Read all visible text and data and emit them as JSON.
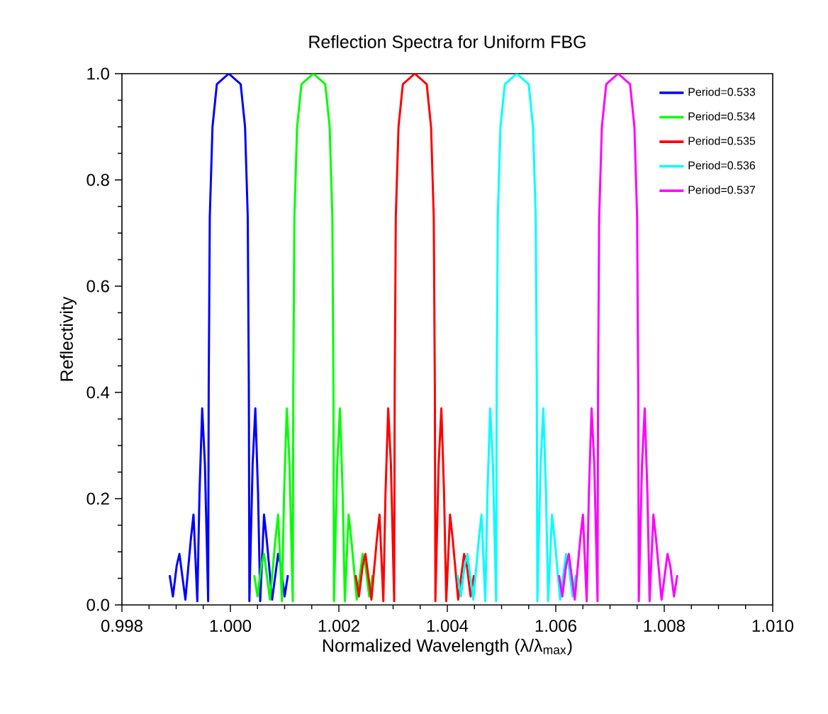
{
  "chart_data": {
    "type": "line",
    "title": "Reflection Spectra for Uniform FBG",
    "xlabel": "Normalized Wavelength (λ/λ$_{max}$)",
    "ylabel": "Reflectivity",
    "xlim": [
      0.998,
      1.01
    ],
    "ylim": [
      0,
      1
    ],
    "xticks": [
      {
        "value": 0.998,
        "label": "0.998"
      },
      {
        "value": 1.0,
        "label": "1.000"
      },
      {
        "value": 1.002,
        "label": "1.002"
      },
      {
        "value": 1.004,
        "label": "1.004"
      },
      {
        "value": 1.006,
        "label": "1.006"
      },
      {
        "value": 1.008,
        "label": "1.008"
      },
      {
        "value": 1.01,
        "label": "1.010"
      }
    ],
    "yticks": [
      {
        "value": 0,
        "label": "0.0"
      },
      {
        "value": 0.2,
        "label": "0.2"
      },
      {
        "value": 0.4,
        "label": "0.4"
      },
      {
        "value": 0.6,
        "label": "0.6"
      },
      {
        "value": 0.8,
        "label": "0.8"
      },
      {
        "value": 1.0,
        "label": "1.0"
      }
    ],
    "legend": "top right",
    "grid": false,
    "series": [
      {
        "name": "Period=0.533",
        "color": "#0000ff",
        "x": [
          0.99888,
          0.99894,
          0.99901,
          0.99906,
          0.99917,
          0.99927,
          0.99932,
          0.99939,
          0.99943,
          0.99948,
          0.99953,
          0.99959,
          0.9996,
          0.99962,
          0.99967,
          0.99975,
          0.99997,
          1.00019,
          1.00027,
          1.00032,
          1.00034,
          1.00035,
          1.00041,
          1.00046,
          1.00051,
          1.00055,
          1.00062,
          1.00067,
          1.00077,
          1.00088,
          1.00093,
          1.001,
          1.00106
        ],
        "values": [
          0.056,
          0.016,
          0.074,
          0.096,
          0.01,
          0.123,
          0.17,
          0.007,
          0.21,
          0.37,
          0.265,
          0.007,
          0.41,
          0.73,
          0.9,
          0.98,
          1.0,
          0.98,
          0.9,
          0.73,
          0.41,
          0.007,
          0.265,
          0.37,
          0.21,
          0.007,
          0.17,
          0.123,
          0.01,
          0.096,
          0.074,
          0.016,
          0.056
        ]
      },
      {
        "name": "Period=0.534",
        "color": "#00ff00",
        "x": [
          1.00044,
          1.0005,
          1.00057,
          1.00062,
          1.00073,
          1.00083,
          1.00088,
          1.00095,
          1.00099,
          1.00104,
          1.00109,
          1.00115,
          1.00116,
          1.00118,
          1.00123,
          1.00131,
          1.00153,
          1.00175,
          1.00183,
          1.00188,
          1.0019,
          1.00191,
          1.00197,
          1.00202,
          1.00207,
          1.00211,
          1.00218,
          1.00223,
          1.00233,
          1.00244,
          1.00249,
          1.00256,
          1.00262
        ],
        "values": [
          0.056,
          0.016,
          0.074,
          0.096,
          0.01,
          0.123,
          0.17,
          0.007,
          0.21,
          0.37,
          0.265,
          0.007,
          0.41,
          0.73,
          0.9,
          0.98,
          1.0,
          0.98,
          0.9,
          0.73,
          0.41,
          0.007,
          0.265,
          0.37,
          0.21,
          0.007,
          0.17,
          0.123,
          0.01,
          0.096,
          0.074,
          0.016,
          0.056
        ]
      },
      {
        "name": "Period=0.535",
        "color": "#ff0000",
        "x": [
          1.00231,
          1.00237,
          1.00244,
          1.00249,
          1.0026,
          1.0027,
          1.00275,
          1.00282,
          1.00286,
          1.00291,
          1.00296,
          1.00302,
          1.00303,
          1.00305,
          1.0031,
          1.00318,
          1.0034,
          1.00362,
          1.0037,
          1.00375,
          1.00377,
          1.00378,
          1.00384,
          1.00389,
          1.00394,
          1.00398,
          1.00405,
          1.0041,
          1.0042,
          1.00431,
          1.00436,
          1.00443,
          1.00449
        ],
        "values": [
          0.056,
          0.016,
          0.074,
          0.096,
          0.01,
          0.123,
          0.17,
          0.007,
          0.21,
          0.37,
          0.265,
          0.007,
          0.41,
          0.73,
          0.9,
          0.98,
          1.0,
          0.98,
          0.9,
          0.73,
          0.41,
          0.007,
          0.265,
          0.37,
          0.21,
          0.007,
          0.17,
          0.123,
          0.01,
          0.096,
          0.074,
          0.016,
          0.056
        ]
      },
      {
        "name": "Period=0.536",
        "color": "#00ffff",
        "x": [
          1.00419,
          1.00425,
          1.00432,
          1.00437,
          1.00448,
          1.00458,
          1.00463,
          1.0047,
          1.00474,
          1.00479,
          1.00484,
          1.0049,
          1.00491,
          1.00493,
          1.00498,
          1.00506,
          1.00528,
          1.0055,
          1.00558,
          1.00563,
          1.00565,
          1.00566,
          1.00572,
          1.00577,
          1.00582,
          1.00586,
          1.00593,
          1.00598,
          1.00608,
          1.00619,
          1.00624,
          1.00631,
          1.00637
        ],
        "values": [
          0.056,
          0.016,
          0.074,
          0.096,
          0.01,
          0.123,
          0.17,
          0.007,
          0.21,
          0.37,
          0.265,
          0.007,
          0.41,
          0.73,
          0.9,
          0.98,
          1.0,
          0.98,
          0.9,
          0.73,
          0.41,
          0.007,
          0.265,
          0.37,
          0.21,
          0.007,
          0.17,
          0.123,
          0.01,
          0.096,
          0.074,
          0.016,
          0.056
        ]
      },
      {
        "name": "Period=0.537",
        "color": "#ff00ff",
        "x": [
          1.00606,
          1.00612,
          1.00619,
          1.00624,
          1.00635,
          1.00645,
          1.0065,
          1.00657,
          1.00661,
          1.00666,
          1.00671,
          1.00677,
          1.00678,
          1.0068,
          1.00685,
          1.00693,
          1.00715,
          1.00737,
          1.00745,
          1.0075,
          1.00752,
          1.00753,
          1.00759,
          1.00764,
          1.00769,
          1.00773,
          1.0078,
          1.00785,
          1.00795,
          1.00806,
          1.00811,
          1.00818,
          1.00824
        ],
        "values": [
          0.056,
          0.016,
          0.074,
          0.096,
          0.01,
          0.123,
          0.17,
          0.007,
          0.21,
          0.37,
          0.265,
          0.007,
          0.41,
          0.73,
          0.9,
          0.98,
          1.0,
          0.98,
          0.9,
          0.73,
          0.41,
          0.007,
          0.265,
          0.37,
          0.21,
          0.007,
          0.17,
          0.123,
          0.01,
          0.096,
          0.074,
          0.016,
          0.056
        ]
      }
    ]
  }
}
